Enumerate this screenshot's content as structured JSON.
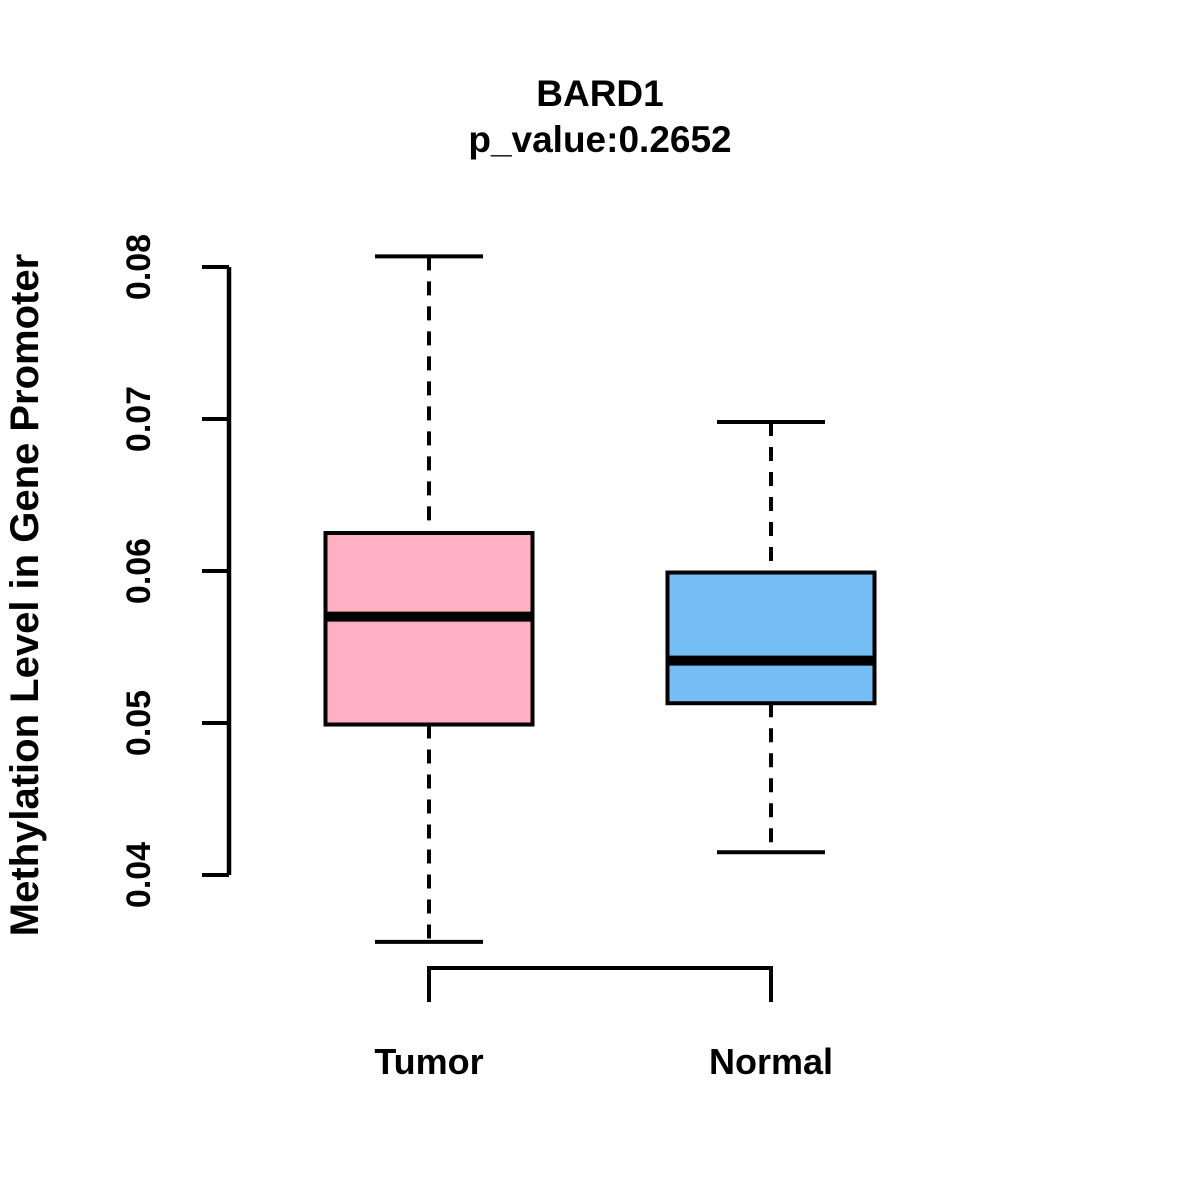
{
  "chart_data": {
    "type": "box",
    "title": "BARD1",
    "subtitle": "p_value:0.2652",
    "xlabel": "",
    "ylabel": "Methylation Level in Gene Promoter",
    "ylim": [
      0.04,
      0.08
    ],
    "yticks": [
      0.04,
      0.05,
      0.06,
      0.07,
      0.08
    ],
    "ytick_labels": [
      "0.04",
      "0.05",
      "0.06",
      "0.07",
      "0.08"
    ],
    "categories": [
      "Tumor",
      "Normal"
    ],
    "grid": "off",
    "legend": "none",
    "whisker_style": "dashed",
    "series": [
      {
        "name": "Tumor",
        "color": "#FFB1C3",
        "whisker_low": 0.0356,
        "q1": 0.0499,
        "median": 0.057,
        "q3": 0.0625,
        "whisker_high": 0.0807
      },
      {
        "name": "Normal",
        "color": "#74BEF5",
        "whisker_low": 0.0415,
        "q1": 0.0513,
        "median": 0.0541,
        "q3": 0.0599,
        "whisker_high": 0.0698
      }
    ],
    "styles": {
      "box_border_color": "#000000",
      "median_color": "#000000",
      "axis_color": "#000000",
      "background": "#FFFFFF"
    }
  }
}
